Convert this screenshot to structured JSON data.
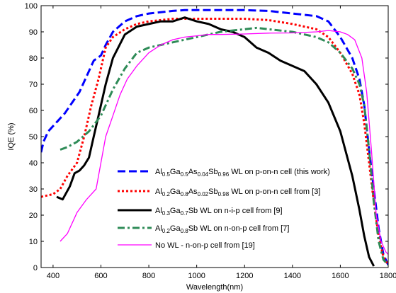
{
  "chart_data": {
    "type": "line",
    "title": "",
    "xlabel": "Wavelength(nm)",
    "ylabel": "IQE (%)",
    "xlim": [
      350,
      1800
    ],
    "ylim": [
      0,
      100
    ],
    "xticks": [
      400,
      600,
      800,
      1000,
      1200,
      1400,
      1600,
      1800
    ],
    "yticks": [
      0,
      10,
      20,
      30,
      40,
      50,
      60,
      70,
      80,
      90,
      100
    ],
    "grid": false,
    "legend_position": "bottom-left",
    "series": [
      {
        "name": "Al0.5Ga0.5As0.04Sb0.96 WL on p-on-n cell (this work)",
        "legend_parts": [
          [
            "Al",
            ""
          ],
          [
            "0.5",
            "sub"
          ],
          [
            "Ga",
            ""
          ],
          [
            "0.5",
            "sub"
          ],
          [
            "As",
            ""
          ],
          [
            "0.04",
            "sub"
          ],
          [
            "Sb",
            ""
          ],
          [
            "0.96",
            "sub"
          ],
          [
            " WL on p-on-n cell (this work)",
            ""
          ]
        ],
        "color": "#0000ff",
        "style": "dashed",
        "points": [
          [
            350,
            44
          ],
          [
            360,
            48
          ],
          [
            380,
            52
          ],
          [
            400,
            54
          ],
          [
            420,
            56
          ],
          [
            450,
            59
          ],
          [
            480,
            63
          ],
          [
            510,
            67
          ],
          [
            540,
            73
          ],
          [
            570,
            79
          ],
          [
            600,
            81
          ],
          [
            620,
            85
          ],
          [
            650,
            90
          ],
          [
            700,
            94
          ],
          [
            750,
            96
          ],
          [
            800,
            97
          ],
          [
            850,
            97.5
          ],
          [
            900,
            98
          ],
          [
            950,
            98.3
          ],
          [
            1000,
            98.3
          ],
          [
            1100,
            98.3
          ],
          [
            1200,
            98.3
          ],
          [
            1300,
            98
          ],
          [
            1400,
            97
          ],
          [
            1450,
            96.5
          ],
          [
            1500,
            96
          ],
          [
            1550,
            94
          ],
          [
            1600,
            88
          ],
          [
            1650,
            80
          ],
          [
            1680,
            72
          ],
          [
            1700,
            62
          ],
          [
            1720,
            45
          ],
          [
            1740,
            30
          ],
          [
            1760,
            15
          ],
          [
            1780,
            5
          ],
          [
            1800,
            1
          ]
        ]
      },
      {
        "name": "Al0.2Ga0.8As0.02Sb0.98 WL on p-on-n cell from [3]",
        "legend_parts": [
          [
            "Al",
            ""
          ],
          [
            "0.2",
            "sub"
          ],
          [
            "Ga",
            ""
          ],
          [
            "0.8",
            "sub"
          ],
          [
            "As",
            ""
          ],
          [
            "0.02",
            "sub"
          ],
          [
            "Sb",
            ""
          ],
          [
            "0.98",
            "sub"
          ],
          [
            " WL on p-on-n cell from [3]",
            ""
          ]
        ],
        "color": "#ff0000",
        "style": "dotted",
        "points": [
          [
            350,
            27
          ],
          [
            400,
            28
          ],
          [
            430,
            30
          ],
          [
            460,
            35
          ],
          [
            500,
            40
          ],
          [
            530,
            50
          ],
          [
            560,
            62
          ],
          [
            590,
            72
          ],
          [
            620,
            84
          ],
          [
            650,
            88
          ],
          [
            700,
            91
          ],
          [
            750,
            93
          ],
          [
            800,
            94
          ],
          [
            850,
            94.5
          ],
          [
            900,
            95
          ],
          [
            950,
            95
          ],
          [
            1000,
            95
          ],
          [
            1100,
            95
          ],
          [
            1200,
            95
          ],
          [
            1300,
            94.5
          ],
          [
            1400,
            93
          ],
          [
            1450,
            92
          ],
          [
            1500,
            91
          ],
          [
            1550,
            88
          ],
          [
            1600,
            82
          ],
          [
            1650,
            74
          ],
          [
            1680,
            66
          ],
          [
            1700,
            55
          ],
          [
            1720,
            40
          ],
          [
            1740,
            25
          ],
          [
            1760,
            12
          ],
          [
            1780,
            4
          ],
          [
            1800,
            1
          ]
        ]
      },
      {
        "name": "Al0.3Ga0.7Sb WL on n-i-p cell from [9]",
        "legend_parts": [
          [
            "Al",
            ""
          ],
          [
            "0.3",
            "sub"
          ],
          [
            "Ga",
            ""
          ],
          [
            "0.7",
            "sub"
          ],
          [
            "Sb WL on n-i-p cell from [9]",
            ""
          ]
        ],
        "color": "#000000",
        "style": "solid",
        "points": [
          [
            415,
            27
          ],
          [
            440,
            26
          ],
          [
            470,
            31
          ],
          [
            490,
            36
          ],
          [
            510,
            37
          ],
          [
            530,
            39
          ],
          [
            550,
            42
          ],
          [
            570,
            50
          ],
          [
            590,
            58
          ],
          [
            620,
            70
          ],
          [
            650,
            80
          ],
          [
            700,
            89
          ],
          [
            750,
            92
          ],
          [
            800,
            93
          ],
          [
            850,
            94
          ],
          [
            900,
            94
          ],
          [
            950,
            95.5
          ],
          [
            1000,
            94
          ],
          [
            1050,
            93
          ],
          [
            1100,
            91
          ],
          [
            1150,
            90
          ],
          [
            1200,
            88
          ],
          [
            1250,
            84
          ],
          [
            1300,
            82
          ],
          [
            1350,
            79
          ],
          [
            1400,
            77
          ],
          [
            1450,
            75
          ],
          [
            1500,
            70
          ],
          [
            1550,
            63
          ],
          [
            1600,
            52
          ],
          [
            1650,
            35
          ],
          [
            1680,
            22
          ],
          [
            1700,
            12
          ],
          [
            1720,
            4
          ],
          [
            1740,
            0.5
          ]
        ]
      },
      {
        "name": "Al0.2Ga0.8Sb WL on n-on-p cell from [7]",
        "legend_parts": [
          [
            "Al",
            ""
          ],
          [
            "0.2",
            "sub"
          ],
          [
            "Ga",
            ""
          ],
          [
            "0.8",
            "sub"
          ],
          [
            "Sb WL on n-on-p cell from [7]",
            ""
          ]
        ],
        "color": "#2e8b57",
        "style": "dashdot",
        "points": [
          [
            430,
            45
          ],
          [
            460,
            46
          ],
          [
            500,
            48
          ],
          [
            550,
            52
          ],
          [
            600,
            58
          ],
          [
            650,
            68
          ],
          [
            700,
            76
          ],
          [
            750,
            82
          ],
          [
            800,
            84
          ],
          [
            850,
            85
          ],
          [
            900,
            86
          ],
          [
            950,
            87
          ],
          [
            1000,
            88
          ],
          [
            1050,
            89
          ],
          [
            1100,
            90
          ],
          [
            1150,
            90.5
          ],
          [
            1200,
            91
          ],
          [
            1250,
            91.5
          ],
          [
            1300,
            91
          ],
          [
            1400,
            90
          ],
          [
            1450,
            89
          ],
          [
            1500,
            88
          ],
          [
            1550,
            86
          ],
          [
            1600,
            82
          ],
          [
            1650,
            76
          ],
          [
            1680,
            70
          ],
          [
            1700,
            62
          ],
          [
            1720,
            45
          ],
          [
            1740,
            25
          ],
          [
            1760,
            10
          ],
          [
            1780,
            3
          ],
          [
            1800,
            1
          ]
        ]
      },
      {
        "name": "No WL - n-on-p cell from [19]",
        "legend_parts": [
          [
            "No WL - n-on-p cell from [19]",
            ""
          ]
        ],
        "color": "#ff00ff",
        "style": "solid",
        "points": [
          [
            430,
            10
          ],
          [
            460,
            13
          ],
          [
            500,
            21
          ],
          [
            540,
            26
          ],
          [
            580,
            30
          ],
          [
            620,
            50
          ],
          [
            650,
            58
          ],
          [
            680,
            66
          ],
          [
            710,
            72
          ],
          [
            750,
            77
          ],
          [
            800,
            82
          ],
          [
            850,
            85
          ],
          [
            900,
            87
          ],
          [
            950,
            88
          ],
          [
            1000,
            88.5
          ],
          [
            1050,
            89
          ],
          [
            1100,
            89
          ],
          [
            1200,
            89.2
          ],
          [
            1300,
            89.5
          ],
          [
            1400,
            89.6
          ],
          [
            1500,
            90
          ],
          [
            1550,
            90.5
          ],
          [
            1600,
            90
          ],
          [
            1630,
            89
          ],
          [
            1660,
            87
          ],
          [
            1690,
            80
          ],
          [
            1710,
            67
          ],
          [
            1730,
            45
          ],
          [
            1750,
            20
          ],
          [
            1770,
            10
          ],
          [
            1790,
            6
          ],
          [
            1800,
            5
          ]
        ]
      }
    ]
  }
}
